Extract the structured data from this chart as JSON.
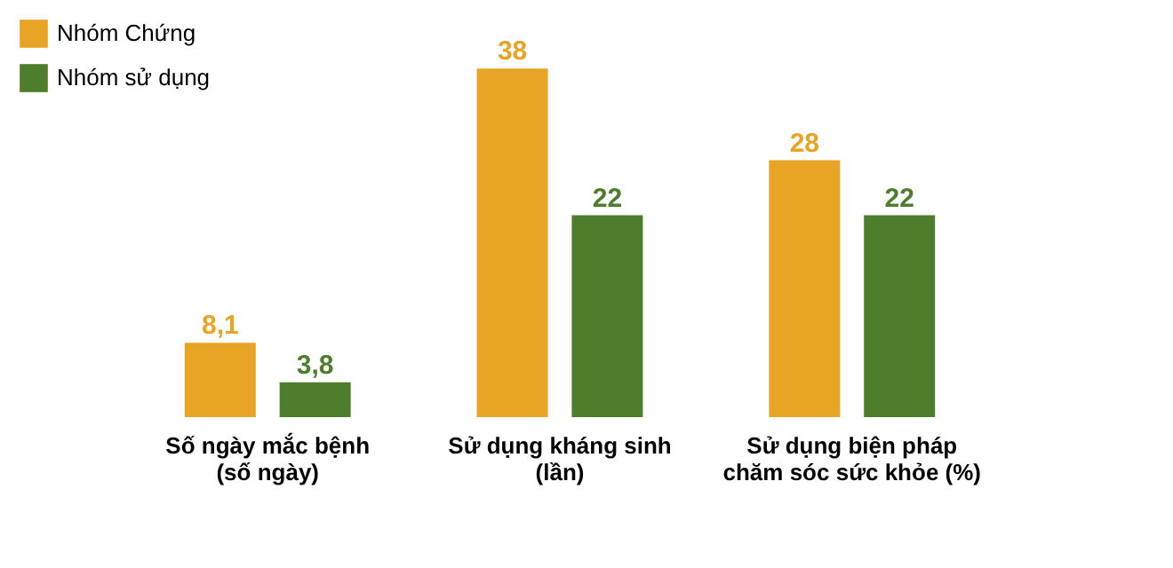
{
  "chart_data": {
    "type": "bar",
    "categories": [
      "Số ngày mắc bệnh\n(số ngày)",
      "Sử dụng kháng sinh\n(lần)",
      "Sử dụng biện pháp\nchăm sóc sức khỏe (%)"
    ],
    "series": [
      {
        "name": "Nhóm Chứng",
        "color": "#e8a424",
        "values": [
          8.1,
          38,
          28
        ],
        "value_labels": [
          "8,1",
          "38",
          "28"
        ]
      },
      {
        "name": "Nhóm sử dụng",
        "color": "#4e7d2c",
        "values": [
          3.8,
          22,
          22
        ],
        "value_labels": [
          "3,8",
          "22",
          "22"
        ]
      }
    ],
    "legend": "top left",
    "grid": false
  }
}
